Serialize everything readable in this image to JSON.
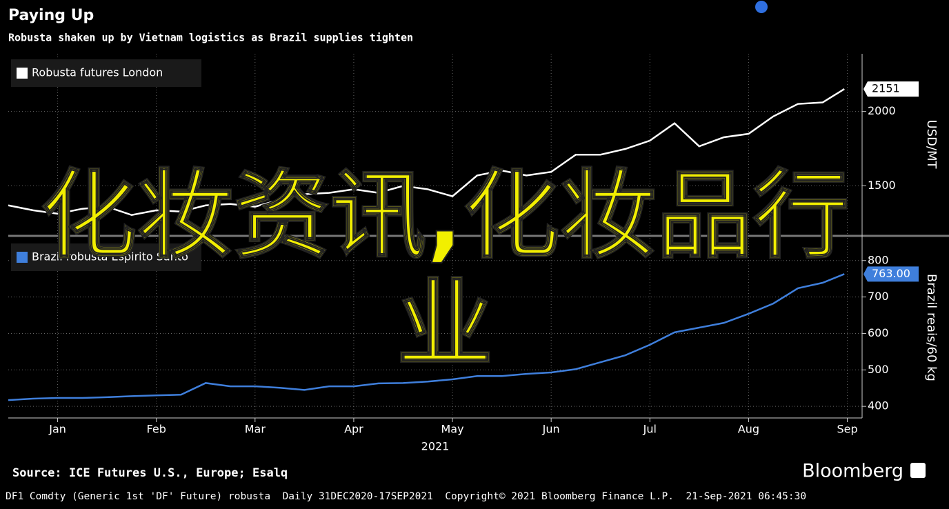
{
  "title": "Paying Up",
  "subtitle": "Robusta shaken up by Vietnam logistics as Brazil supplies tighten",
  "chart_data": [
    {
      "type": "line",
      "legend": "upper left",
      "grid": true,
      "x": [
        0,
        0.25,
        0.5,
        0.75,
        1,
        1.25,
        1.5,
        1.75,
        2,
        2.25,
        2.5,
        2.75,
        3,
        3.25,
        3.5,
        3.75,
        4,
        4.25,
        4.5,
        4.75,
        5,
        5.25,
        5.5,
        5.75,
        6,
        6.25,
        6.5,
        6.75,
        7,
        7.25,
        7.5,
        7.75,
        8,
        8.25,
        8.47
      ],
      "xlim": [
        0,
        8.65
      ],
      "ylim": [
        1173,
        2388
      ],
      "yticks": [
        1500,
        2000
      ],
      "ylabel": "USD/MT",
      "series": [
        {
          "name": "Robusta futures London",
          "color": "#ffffff",
          "values": [
            1369,
            1336,
            1313,
            1346,
            1360,
            1304,
            1336,
            1327,
            1369,
            1378,
            1360,
            1407,
            1444,
            1453,
            1477,
            1453,
            1500,
            1477,
            1430,
            1570,
            1603,
            1570,
            1594,
            1710,
            1710,
            1748,
            1804,
            1921,
            1766,
            1827,
            1850,
            1967,
            2051,
            2061,
            2151
          ]
        }
      ]
    },
    {
      "type": "line",
      "legend": "upper left",
      "grid": true,
      "x": [
        0,
        0.25,
        0.5,
        0.75,
        1,
        1.25,
        1.5,
        1.75,
        2,
        2.25,
        2.5,
        2.75,
        3,
        3.25,
        3.5,
        3.75,
        4,
        4.25,
        4.5,
        4.75,
        5,
        5.25,
        5.5,
        5.75,
        6,
        6.25,
        6.5,
        6.75,
        7,
        7.25,
        7.5,
        7.75,
        8,
        8.25,
        8.47
      ],
      "xlim": [
        0,
        8.65
      ],
      "xticks": [
        {
          "value": 0.5,
          "label": "Jan"
        },
        {
          "value": 1.5,
          "label": "Feb"
        },
        {
          "value": 2.5,
          "label": "Mar"
        },
        {
          "value": 3.5,
          "label": "Apr"
        },
        {
          "value": 4.5,
          "label": "May"
        },
        {
          "value": 5.5,
          "label": "Jun"
        },
        {
          "value": 6.5,
          "label": "Jul"
        },
        {
          "value": 7.5,
          "label": "Aug"
        },
        {
          "value": 8.5,
          "label": "Sep"
        }
      ],
      "xlabel": "2021",
      "ylim": [
        370,
        862
      ],
      "yticks": [
        400,
        500,
        600,
        700,
        800
      ],
      "ylabel": "Brazil reais/60 kg",
      "series": [
        {
          "name": "Brazil robusta Espirito Santo",
          "color": "#3f7fdc",
          "values": [
            417,
            421,
            423,
            423,
            425,
            428,
            430,
            432,
            464,
            455,
            455,
            451,
            445,
            455,
            455,
            463,
            464,
            468,
            474,
            483,
            483,
            489,
            493,
            502,
            521,
            540,
            569,
            603,
            616,
            629,
            654,
            682,
            724,
            739,
            763
          ],
          "value_labels": [
            null,
            null,
            null,
            null,
            null,
            null,
            null,
            null,
            null,
            null,
            null,
            null,
            null,
            null,
            null,
            null,
            null,
            null,
            null,
            null,
            null,
            null,
            null,
            null,
            null,
            null,
            null,
            null,
            null,
            null,
            null,
            null,
            null,
            null,
            "763.00"
          ]
        }
      ]
    }
  ],
  "overlay_text": "化妆资讯,化妆品行业",
  "source": "Source: ICE Futures U.S., Europe; Esalq",
  "brand": "Bloomberg",
  "footer": "DF1 Comdty (Generic 1st 'DF' Future) robusta  Daily 31DEC2020-17SEP2021  Copyright© 2021 Bloomberg Finance L.P.  21-Sep-2021 06:45:30"
}
